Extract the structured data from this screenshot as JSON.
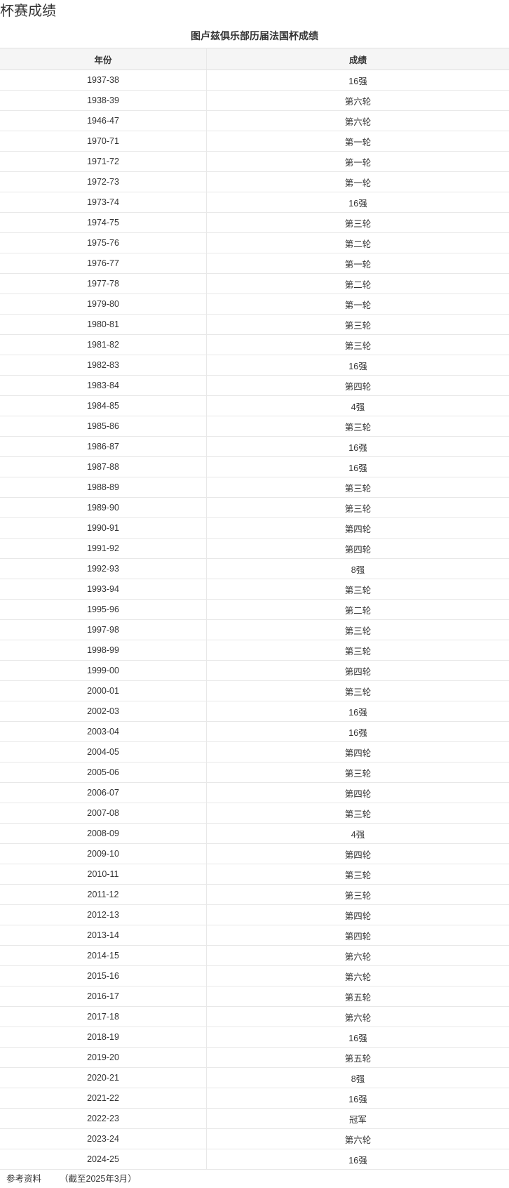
{
  "header": {
    "title": "杯赛成绩"
  },
  "table": {
    "caption": "图卢兹俱乐部历届法国杯成绩",
    "columns": [
      "年份",
      "成绩"
    ],
    "rows": [
      [
        "1937-38",
        "16强"
      ],
      [
        "1938-39",
        "第六轮"
      ],
      [
        "1946-47",
        "第六轮"
      ],
      [
        "1970-71",
        "第一轮"
      ],
      [
        "1971-72",
        "第一轮"
      ],
      [
        "1972-73",
        "第一轮"
      ],
      [
        "1973-74",
        "16强"
      ],
      [
        "1974-75",
        "第三轮"
      ],
      [
        "1975-76",
        "第二轮"
      ],
      [
        "1976-77",
        "第一轮"
      ],
      [
        "1977-78",
        "第二轮"
      ],
      [
        "1979-80",
        "第一轮"
      ],
      [
        "1980-81",
        "第三轮"
      ],
      [
        "1981-82",
        "第三轮"
      ],
      [
        "1982-83",
        "16强"
      ],
      [
        "1983-84",
        "第四轮"
      ],
      [
        "1984-85",
        "4强"
      ],
      [
        "1985-86",
        "第三轮"
      ],
      [
        "1986-87",
        "16强"
      ],
      [
        "1987-88",
        "16强"
      ],
      [
        "1988-89",
        "第三轮"
      ],
      [
        "1989-90",
        "第三轮"
      ],
      [
        "1990-91",
        "第四轮"
      ],
      [
        "1991-92",
        "第四轮"
      ],
      [
        "1992-93",
        "8强"
      ],
      [
        "1993-94",
        "第三轮"
      ],
      [
        "1995-96",
        "第二轮"
      ],
      [
        "1997-98",
        "第三轮"
      ],
      [
        "1998-99",
        "第三轮"
      ],
      [
        "1999-00",
        "第四轮"
      ],
      [
        "2000-01",
        "第三轮"
      ],
      [
        "2002-03",
        "16强"
      ],
      [
        "2003-04",
        "16强"
      ],
      [
        "2004-05",
        "第四轮"
      ],
      [
        "2005-06",
        "第三轮"
      ],
      [
        "2006-07",
        "第四轮"
      ],
      [
        "2007-08",
        "第三轮"
      ],
      [
        "2008-09",
        "4强"
      ],
      [
        "2009-10",
        "第四轮"
      ],
      [
        "2010-11",
        "第三轮"
      ],
      [
        "2011-12",
        "第三轮"
      ],
      [
        "2012-13",
        "第四轮"
      ],
      [
        "2013-14",
        "第四轮"
      ],
      [
        "2014-15",
        "第六轮"
      ],
      [
        "2015-16",
        "第六轮"
      ],
      [
        "2016-17",
        "第五轮"
      ],
      [
        "2017-18",
        "第六轮"
      ],
      [
        "2018-19",
        "16强"
      ],
      [
        "2019-20",
        "第五轮"
      ],
      [
        "2020-21",
        "8强"
      ],
      [
        "2021-22",
        "16强"
      ],
      [
        "2022-23",
        "冠军"
      ],
      [
        "2023-24",
        "第六轮"
      ],
      [
        "2024-25",
        "16强"
      ]
    ]
  },
  "footer": {
    "reference": "参考资料",
    "note": "（截至2025年3月）"
  }
}
